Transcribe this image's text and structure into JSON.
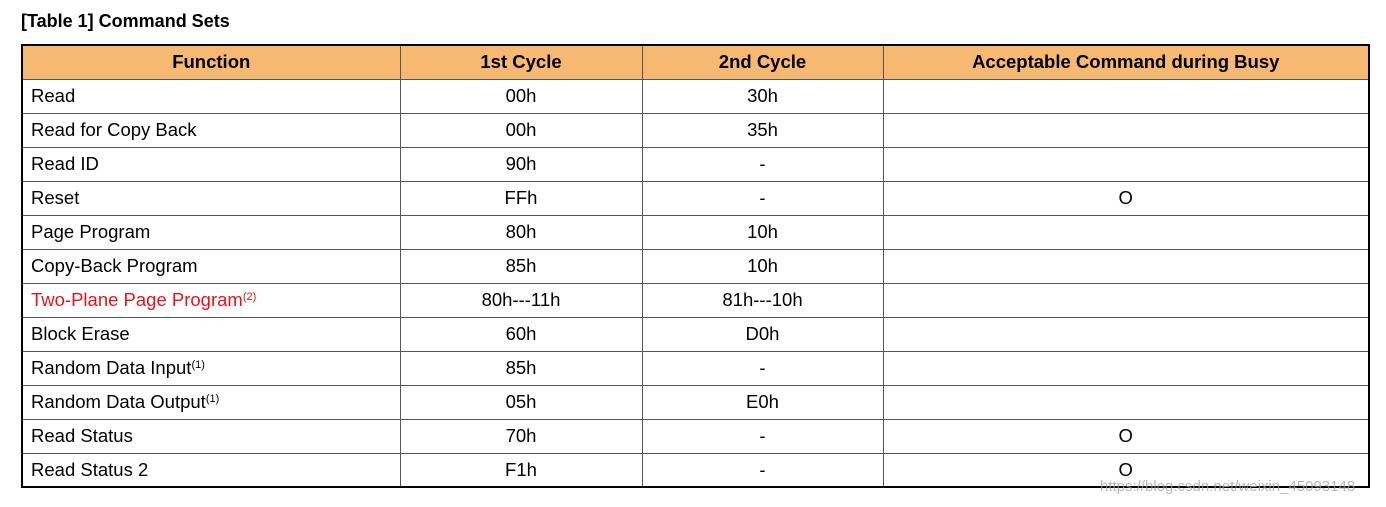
{
  "header": {
    "title": "[Table 1]  Command Sets"
  },
  "table": {
    "columns": [
      "Function",
      "1st Cycle",
      "2nd Cycle",
      "Acceptable Command during Busy"
    ],
    "rows": [
      {
        "function": "Read",
        "first": "00h",
        "second": "30h"
      },
      {
        "function": "Read for Copy Back",
        "first": "00h",
        "second": "35h"
      },
      {
        "function": "Read ID",
        "first": "90h",
        "second": "-"
      },
      {
        "function": "Reset",
        "first": "FFh",
        "second": "-",
        "busy": "O"
      },
      {
        "function": "Page Program",
        "first": "80h",
        "second": "10h"
      },
      {
        "function": "Copy-Back Program",
        "first": "85h",
        "second": "10h"
      },
      {
        "function": "Two-Plane Page Program",
        "note": "(2)",
        "first": "80h---11h",
        "second": "81h---10h",
        "color": "#e3141b"
      },
      {
        "function": "Block Erase",
        "first": "60h",
        "second": "D0h"
      },
      {
        "function": "Random Data Input",
        "note": "(1)",
        "first": "85h",
        "second": "-"
      },
      {
        "function": "Random Data Output",
        "note": "(1)",
        "first": "05h",
        "second": "E0h"
      },
      {
        "function": "Read Status",
        "first": "70h",
        "second": "-",
        "busy": "O"
      },
      {
        "function": "Read Status 2",
        "first": "F1h",
        "second": "-",
        "busy": "O"
      }
    ]
  },
  "watermark": "https://blog.csdn.net/weixin_45093148"
}
